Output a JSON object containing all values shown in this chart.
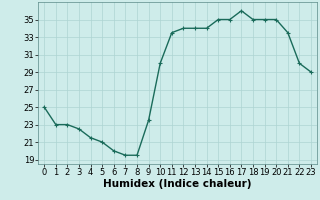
{
  "x": [
    0,
    1,
    2,
    3,
    4,
    5,
    6,
    7,
    8,
    9,
    10,
    11,
    12,
    13,
    14,
    15,
    16,
    17,
    18,
    19,
    20,
    21,
    22,
    23
  ],
  "y": [
    25,
    23,
    23,
    22.5,
    21.5,
    21,
    20,
    19.5,
    19.5,
    23.5,
    30,
    33.5,
    34,
    34,
    34,
    35,
    35,
    36,
    35,
    35,
    35,
    33.5,
    30,
    29
  ],
  "line_color": "#1a6b5a",
  "marker": "+",
  "marker_size": 3,
  "linewidth": 1.0,
  "xlabel": "Humidex (Indice chaleur)",
  "ylabel": "",
  "xlim": [
    -0.5,
    23.5
  ],
  "ylim": [
    18.5,
    37
  ],
  "yticks": [
    19,
    21,
    23,
    25,
    27,
    29,
    31,
    33,
    35
  ],
  "xticks": [
    0,
    1,
    2,
    3,
    4,
    5,
    6,
    7,
    8,
    9,
    10,
    11,
    12,
    13,
    14,
    15,
    16,
    17,
    18,
    19,
    20,
    21,
    22,
    23
  ],
  "background_color": "#ceecea",
  "grid_color": "#aed4d2",
  "xlabel_fontsize": 7.5,
  "tick_fontsize": 6
}
